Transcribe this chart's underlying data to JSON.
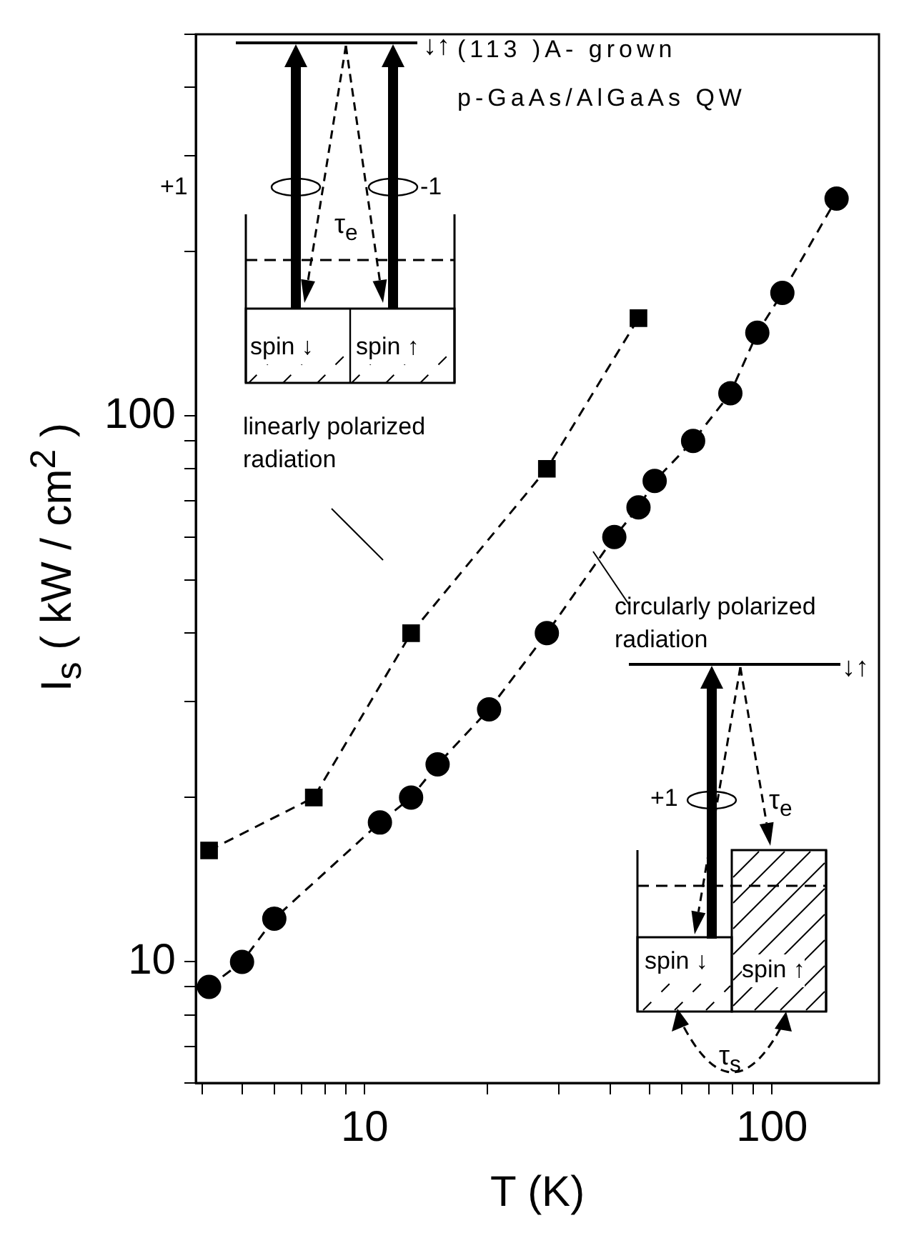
{
  "chart_data": {
    "type": "scatter",
    "xlabel": "T (K)",
    "ylabel": "I$_{s}$ ( kW / cm$^{2}$ )",
    "log": "xy",
    "grid": false,
    "legend": false,
    "xlim": [
      3.85,
      183
    ],
    "ylim": [
      6,
      500
    ],
    "xticks": [
      {
        "value": 4,
        "label": null
      },
      {
        "value": 5,
        "label": null
      },
      {
        "value": 6,
        "label": null
      },
      {
        "value": 7,
        "label": null
      },
      {
        "value": 8,
        "label": null
      },
      {
        "value": 9,
        "label": null
      },
      10,
      {
        "value": 20,
        "label": null
      },
      {
        "value": 30,
        "label": null
      },
      {
        "value": 40,
        "label": null
      },
      {
        "value": 50,
        "label": null
      },
      {
        "value": 60,
        "label": null
      },
      {
        "value": 70,
        "label": null
      },
      {
        "value": 80,
        "label": null
      },
      {
        "value": 90,
        "label": null
      },
      100
    ],
    "yticks": [
      {
        "value": 6,
        "label": null
      },
      {
        "value": 7,
        "label": null
      },
      {
        "value": 8,
        "label": null
      },
      {
        "value": 9,
        "label": null
      },
      10,
      {
        "value": 20,
        "label": null
      },
      {
        "value": 30,
        "label": null
      },
      {
        "value": 40,
        "label": null
      },
      {
        "value": 50,
        "label": null
      },
      {
        "value": 60,
        "label": null
      },
      {
        "value": 70,
        "label": null
      },
      {
        "value": 80,
        "label": null
      },
      {
        "value": 90,
        "label": null
      },
      100,
      {
        "value": 200,
        "label": null
      },
      {
        "value": 300,
        "label": null
      },
      {
        "value": 400,
        "label": null
      },
      {
        "value": 500,
        "label": null
      }
    ],
    "series": [
      {
        "type": "line",
        "color": "#000000",
        "line_style": "dashed",
        "marker": "none",
        "x": [
          4.15,
          7.5,
          13,
          28,
          47
        ],
        "values": [
          16,
          20,
          40,
          80,
          151
        ]
      },
      {
        "type": "line",
        "color": "#000000",
        "line_style": "dashed",
        "marker": "none",
        "x": [
          4.15,
          5,
          6,
          10.9,
          13,
          15.1,
          20.2,
          28,
          41,
          47,
          51.5,
          64,
          79,
          92,
          106,
          144
        ],
        "values": [
          9,
          10,
          12,
          18,
          20,
          23,
          29,
          40,
          60,
          68,
          76,
          90,
          110,
          142,
          168,
          250
        ]
      },
      {
        "type": "scatter",
        "color": "#000000",
        "marker": "square",
        "x": [
          4.15,
          7.5,
          13,
          28,
          47
        ],
        "values": [
          16,
          20,
          40,
          80,
          151
        ]
      },
      {
        "type": "scatter",
        "color": "#000000",
        "marker": "circle",
        "x": [
          4.15,
          5,
          6,
          10.9,
          13,
          15.1,
          20.2,
          28,
          41,
          47,
          51.5,
          64,
          79,
          92,
          106,
          144
        ],
        "values": [
          9,
          10,
          12,
          18,
          20,
          23,
          29,
          40,
          60,
          68,
          76,
          90,
          110,
          142,
          168,
          250
        ]
      }
    ],
    "annotations": [
      "↓↑",
      "(113 )A- grown",
      "p-GaAs/AlGaAs QW",
      "+1",
      "-1",
      "τ$_{e}$",
      "spin ↓",
      "spin ↑",
      "linearly polarized radiation",
      "circularly polarized radiation",
      "↓↑",
      "+1",
      "τ$_{e}$",
      "spin ↓",
      "spin ↑",
      "τ$_{s}$"
    ]
  }
}
